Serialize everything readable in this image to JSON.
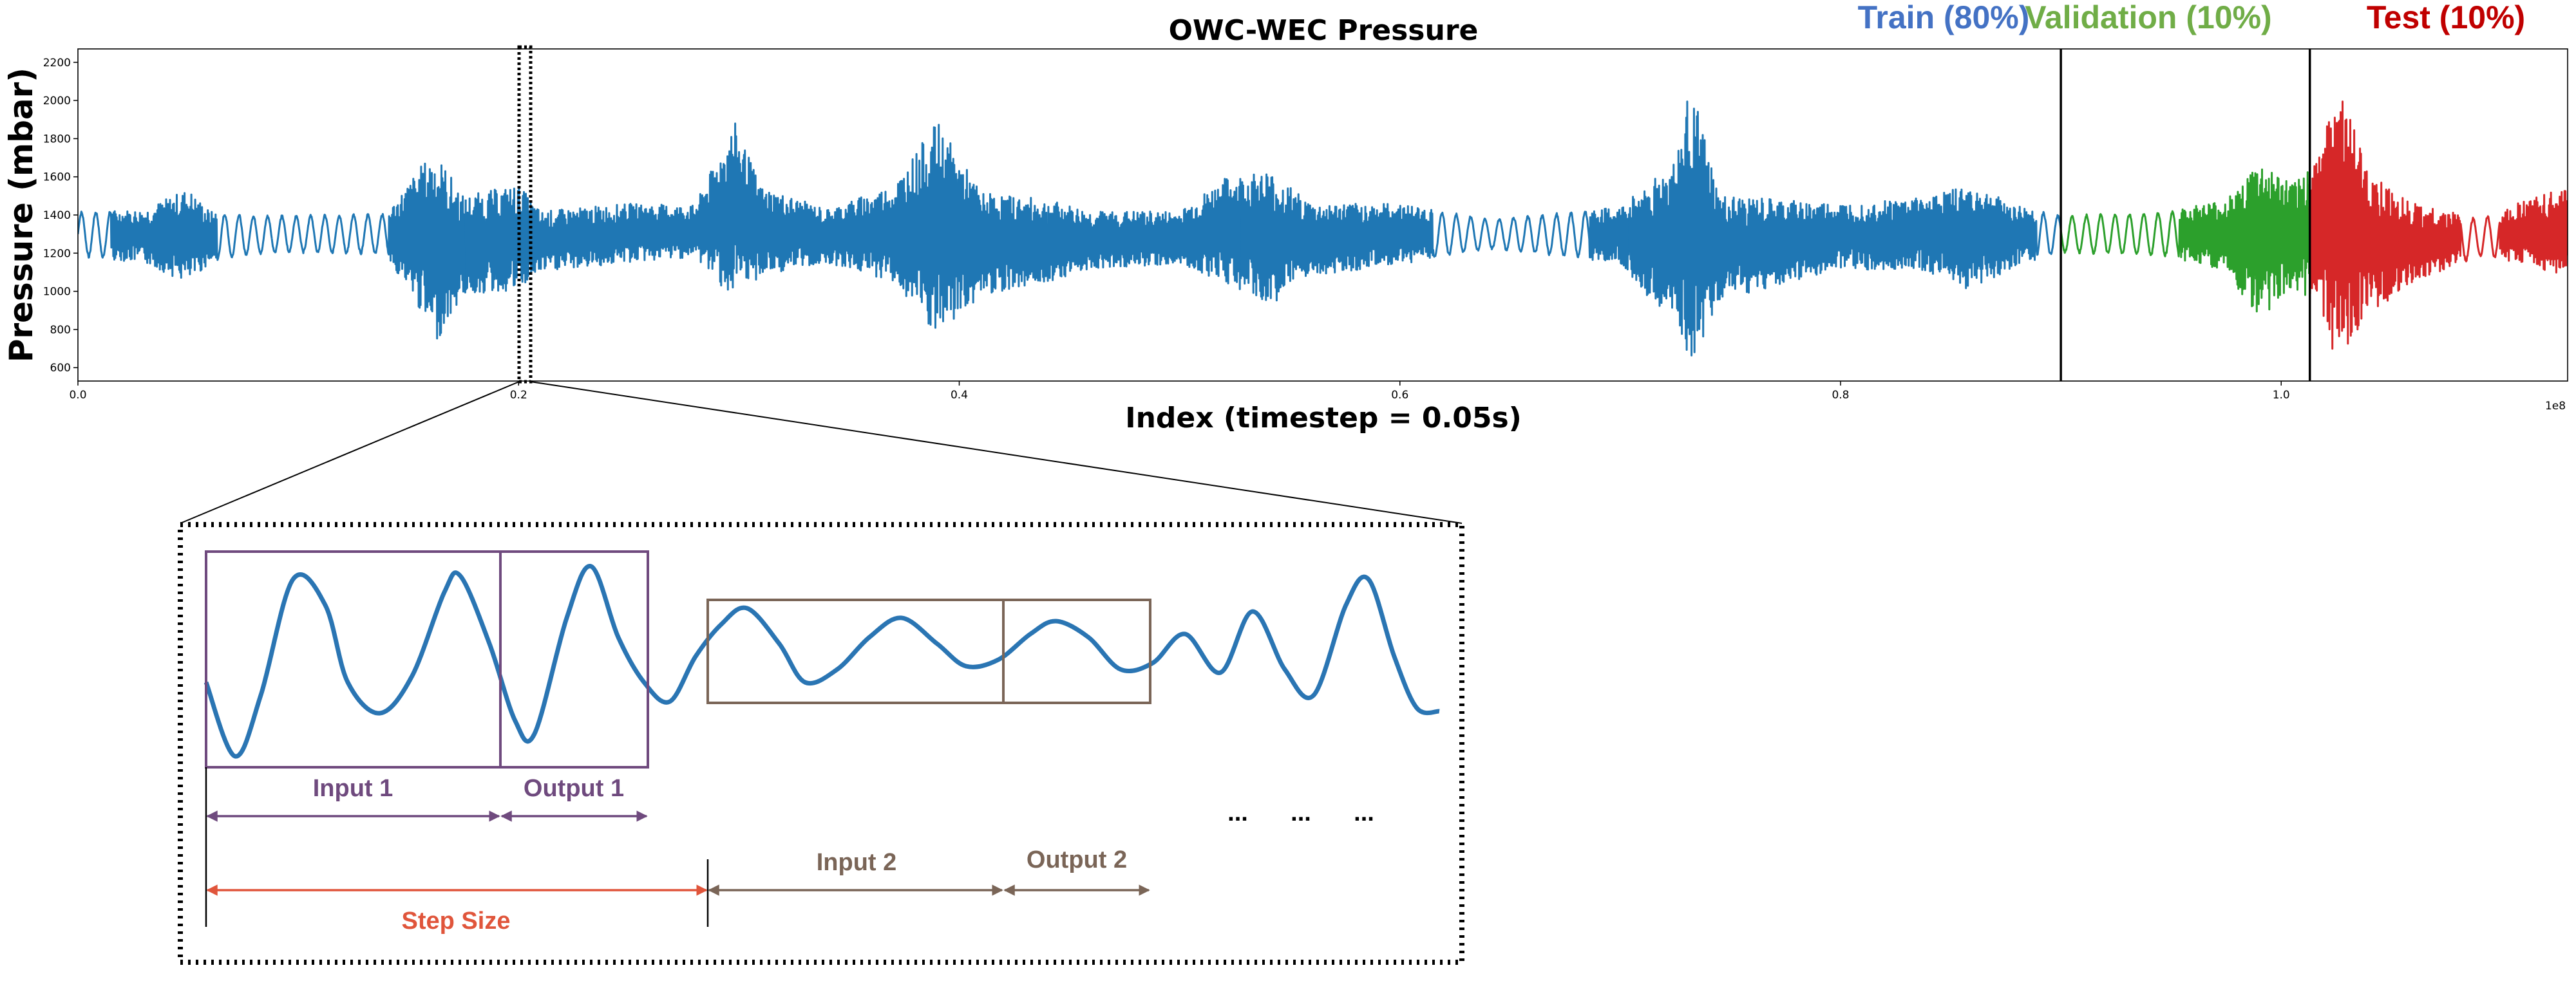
{
  "chart_data": {
    "type": "line",
    "title": "OWC-WEC Pressure",
    "xlabel": "Index (timestep = 0.05s)",
    "ylabel": "Pressure (mbar)",
    "x_offset_text": "1e8",
    "xlim": [
      0,
      1.13
    ],
    "ylim": [
      530,
      2270
    ],
    "xticks": [
      "0.0",
      "0.2",
      "0.4",
      "0.6",
      "0.8",
      "1.0"
    ],
    "yticks": [
      "600",
      "800",
      "1000",
      "1200",
      "1400",
      "1600",
      "1800",
      "2000",
      "2200"
    ],
    "splits": [
      {
        "name": "Train (80%)",
        "color": "#4472c4",
        "x_start": 0.0,
        "x_end": 0.9
      },
      {
        "name": "Validation (10%)",
        "color": "#70ad47",
        "x_start": 0.9,
        "x_end": 1.013
      },
      {
        "name": "Test (10%)",
        "color": "#c00000",
        "x_start": 1.013,
        "x_end": 1.13
      }
    ],
    "series_colors": {
      "train": "#1f77b4",
      "validation": "#2ca02c",
      "test": "#d62728"
    },
    "envelope": [
      {
        "x": 0.0,
        "lo": 1180,
        "hi": 1420
      },
      {
        "x": 0.03,
        "lo": 1150,
        "hi": 1430
      },
      {
        "x": 0.05,
        "lo": 1040,
        "hi": 1540
      },
      {
        "x": 0.06,
        "lo": 1150,
        "hi": 1420
      },
      {
        "x": 0.08,
        "lo": 1190,
        "hi": 1400
      },
      {
        "x": 0.1,
        "lo": 1200,
        "hi": 1400
      },
      {
        "x": 0.14,
        "lo": 1190,
        "hi": 1410
      },
      {
        "x": 0.155,
        "lo": 900,
        "hi": 1650
      },
      {
        "x": 0.162,
        "lo": 720,
        "hi": 1740
      },
      {
        "x": 0.175,
        "lo": 980,
        "hi": 1500
      },
      {
        "x": 0.2,
        "lo": 1000,
        "hi": 1560
      },
      {
        "x": 0.21,
        "lo": 1100,
        "hi": 1420
      },
      {
        "x": 0.25,
        "lo": 1150,
        "hi": 1460
      },
      {
        "x": 0.28,
        "lo": 1180,
        "hi": 1450
      },
      {
        "x": 0.298,
        "lo": 950,
        "hi": 1890
      },
      {
        "x": 0.31,
        "lo": 1080,
        "hi": 1550
      },
      {
        "x": 0.34,
        "lo": 1150,
        "hi": 1430
      },
      {
        "x": 0.37,
        "lo": 1050,
        "hi": 1560
      },
      {
        "x": 0.39,
        "lo": 740,
        "hi": 1890
      },
      {
        "x": 0.41,
        "lo": 980,
        "hi": 1520
      },
      {
        "x": 0.44,
        "lo": 1050,
        "hi": 1480
      },
      {
        "x": 0.46,
        "lo": 1120,
        "hi": 1420
      },
      {
        "x": 0.5,
        "lo": 1140,
        "hi": 1420
      },
      {
        "x": 0.52,
        "lo": 1050,
        "hi": 1590
      },
      {
        "x": 0.54,
        "lo": 920,
        "hi": 1640
      },
      {
        "x": 0.56,
        "lo": 1080,
        "hi": 1460
      },
      {
        "x": 0.6,
        "lo": 1140,
        "hi": 1460
      },
      {
        "x": 0.64,
        "lo": 1220,
        "hi": 1380
      },
      {
        "x": 0.7,
        "lo": 1150,
        "hi": 1440
      },
      {
        "x": 0.725,
        "lo": 800,
        "hi": 1700
      },
      {
        "x": 0.732,
        "lo": 600,
        "hi": 2090
      },
      {
        "x": 0.745,
        "lo": 950,
        "hi": 1500
      },
      {
        "x": 0.8,
        "lo": 1120,
        "hi": 1460
      },
      {
        "x": 0.84,
        "lo": 1100,
        "hi": 1500
      },
      {
        "x": 0.86,
        "lo": 1000,
        "hi": 1560
      },
      {
        "x": 0.88,
        "lo": 1140,
        "hi": 1450
      },
      {
        "x": 0.9,
        "lo": 1200,
        "hi": 1400
      },
      {
        "x": 0.95,
        "lo": 1180,
        "hi": 1420
      },
      {
        "x": 0.975,
        "lo": 1100,
        "hi": 1480
      },
      {
        "x": 0.99,
        "lo": 860,
        "hi": 1680
      },
      {
        "x": 1.005,
        "lo": 1000,
        "hi": 1560
      },
      {
        "x": 1.015,
        "lo": 950,
        "hi": 1680
      },
      {
        "x": 1.025,
        "lo": 640,
        "hi": 2110
      },
      {
        "x": 1.04,
        "lo": 880,
        "hi": 1620
      },
      {
        "x": 1.06,
        "lo": 1050,
        "hi": 1460
      },
      {
        "x": 1.09,
        "lo": 1180,
        "hi": 1380
      },
      {
        "x": 1.11,
        "lo": 1150,
        "hi": 1480
      },
      {
        "x": 1.13,
        "lo": 1050,
        "hi": 1540
      }
    ],
    "zoom_window": {
      "x_start": 0.2,
      "x_end": 0.205
    }
  },
  "annotations": {
    "input_1": "Input 1",
    "output_1": "Output 1",
    "input_2": "Input 2",
    "output_2": "Output 2",
    "step_size": "Step Size",
    "ellipsis": [
      "...",
      "...",
      "..."
    ],
    "colors": {
      "window_1": "#6f4a7e",
      "window_2": "#7a6557",
      "step": "#e0553b",
      "wave": "#2a75b3"
    }
  }
}
